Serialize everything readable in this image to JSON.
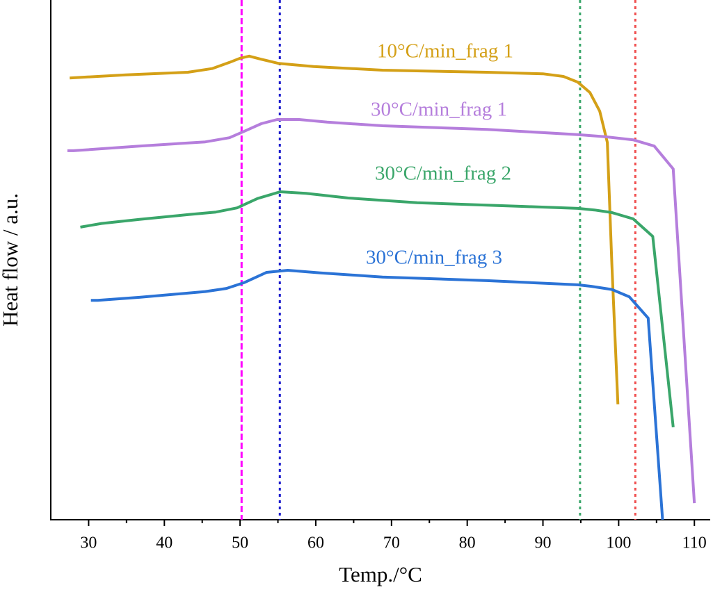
{
  "chart_data": {
    "type": "line",
    "xlabel": "Temp./°C",
    "ylabel": "Heat flow / a.u.",
    "xlim": [
      25,
      112
    ],
    "ylim": [
      0,
      100
    ],
    "xticks": [
      30,
      40,
      50,
      60,
      70,
      80,
      90,
      100,
      110
    ],
    "xminor_ticks": [
      35,
      45,
      55,
      65,
      75,
      85,
      95,
      105
    ],
    "reference_lines": [
      {
        "x": 50.2,
        "color": "#ff00ff",
        "style": "dashed"
      },
      {
        "x": 55.25,
        "color": "#1a1acc",
        "style": "dotted"
      },
      {
        "x": 94.9,
        "color": "#3aa66a",
        "style": "dotted"
      },
      {
        "x": 102.2,
        "color": "#f05050",
        "style": "dotted"
      }
    ],
    "series": [
      {
        "name": "10°C/min_frag 1",
        "color": "#d4a017",
        "x": [
          27.5,
          34.9,
          43.1,
          46.3,
          48.6,
          50.0,
          51.2,
          52.8,
          55.1,
          59.7,
          68.8,
          82.6,
          90.0,
          92.7,
          94.6,
          96.2,
          97.5,
          98.5,
          99.1,
          99.9
        ],
        "values": [
          85.0,
          85.6,
          86.1,
          86.8,
          88.0,
          88.8,
          89.2,
          88.6,
          87.8,
          87.2,
          86.5,
          86.1,
          85.8,
          85.3,
          84.2,
          82.2,
          78.6,
          72.6,
          49.2,
          22.2
        ]
      },
      {
        "name": "30°C/min_frag 1",
        "color": "#b57edc",
        "x": [
          27.2,
          28.0,
          36.7,
          45.4,
          48.6,
          50.5,
          52.8,
          54.9,
          57.8,
          61.5,
          68.8,
          82.6,
          94.6,
          98.2,
          101.9,
          104.7,
          107.2,
          110.0
        ],
        "values": [
          71.0,
          71.0,
          71.9,
          72.7,
          73.5,
          74.7,
          76.2,
          77.0,
          77.0,
          76.5,
          75.8,
          75.1,
          74.1,
          73.7,
          73.1,
          71.9,
          67.5,
          3.2
        ]
      },
      {
        "name": "30°C/min_frag 2",
        "color": "#3aa66a",
        "x": [
          28.9,
          31.7,
          36.7,
          43.1,
          46.8,
          49.6,
          52.3,
          55.3,
          58.7,
          64.3,
          73.4,
          87.2,
          94.6,
          96.8,
          99.1,
          101.9,
          104.5,
          107.2
        ],
        "values": [
          56.3,
          57.0,
          57.8,
          58.7,
          59.2,
          60.0,
          61.8,
          63.1,
          62.8,
          61.9,
          61.0,
          60.3,
          59.9,
          59.6,
          59.1,
          57.9,
          54.5,
          17.8
        ]
      },
      {
        "name": "30°C/min_frag 3",
        "color": "#2b73d6",
        "x": [
          30.3,
          31.2,
          36.7,
          45.4,
          48.2,
          50.5,
          53.5,
          56.3,
          60.6,
          68.8,
          82.6,
          94.6,
          96.4,
          99.1,
          101.4,
          103.9,
          105.8
        ],
        "values": [
          42.2,
          42.2,
          42.8,
          43.9,
          44.5,
          45.6,
          47.6,
          48.0,
          47.5,
          46.7,
          46.0,
          45.2,
          44.9,
          44.3,
          42.9,
          38.8,
          0
        ]
      }
    ]
  }
}
